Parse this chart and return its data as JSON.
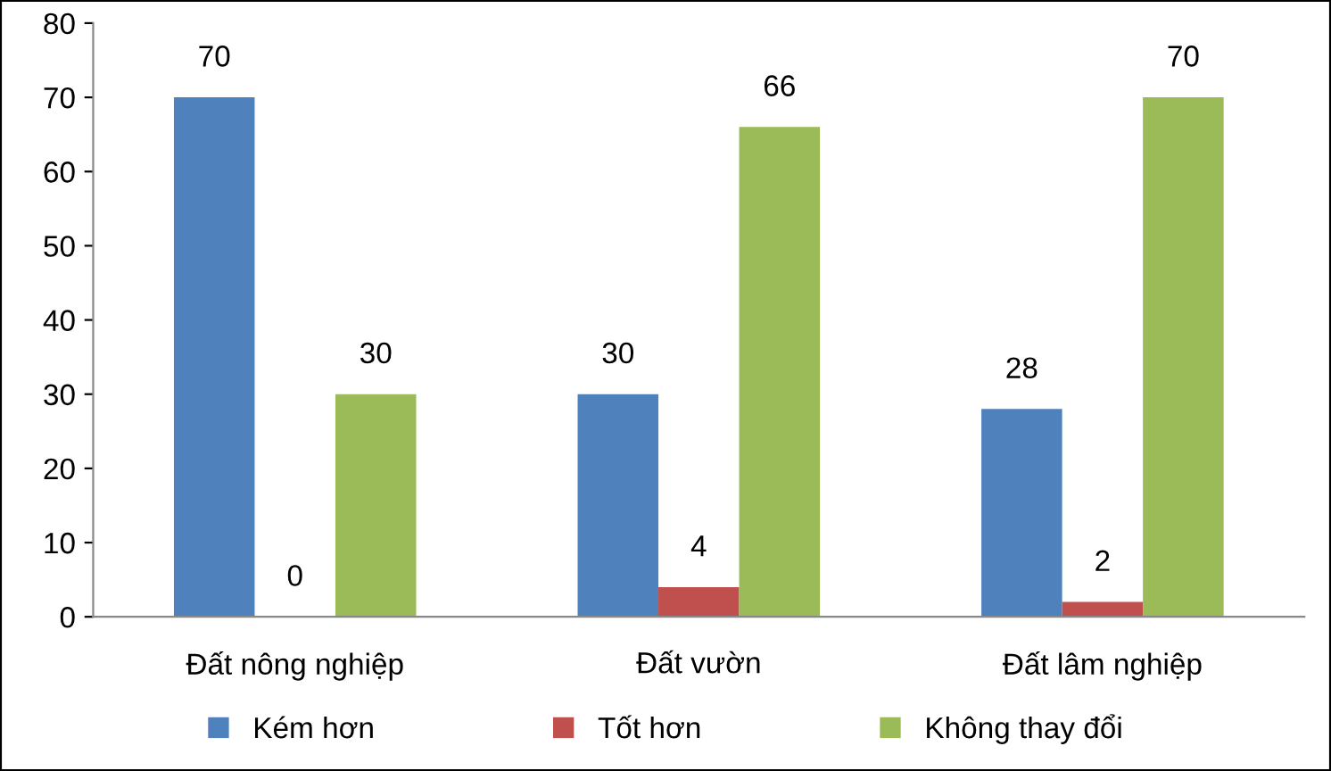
{
  "chart_data": {
    "type": "bar",
    "categories": [
      "Đất nông nghiệp",
      "Đất vườn",
      "Đất lâm nghiệp"
    ],
    "series": [
      {
        "name": "Kém hơn",
        "color": "#4f81bd",
        "values": [
          70,
          30,
          28
        ]
      },
      {
        "name": "Tốt hơn",
        "color": "#c0504d",
        "values": [
          0,
          4,
          2
        ]
      },
      {
        "name": "Không thay đổi",
        "color": "#9bbb59",
        "values": [
          30,
          66,
          70
        ]
      }
    ],
    "ylim": [
      0,
      80
    ],
    "yticks": [
      0,
      10,
      20,
      30,
      40,
      50,
      60,
      70,
      80
    ],
    "data_labels": true,
    "grid": false,
    "legend": "bottom"
  }
}
